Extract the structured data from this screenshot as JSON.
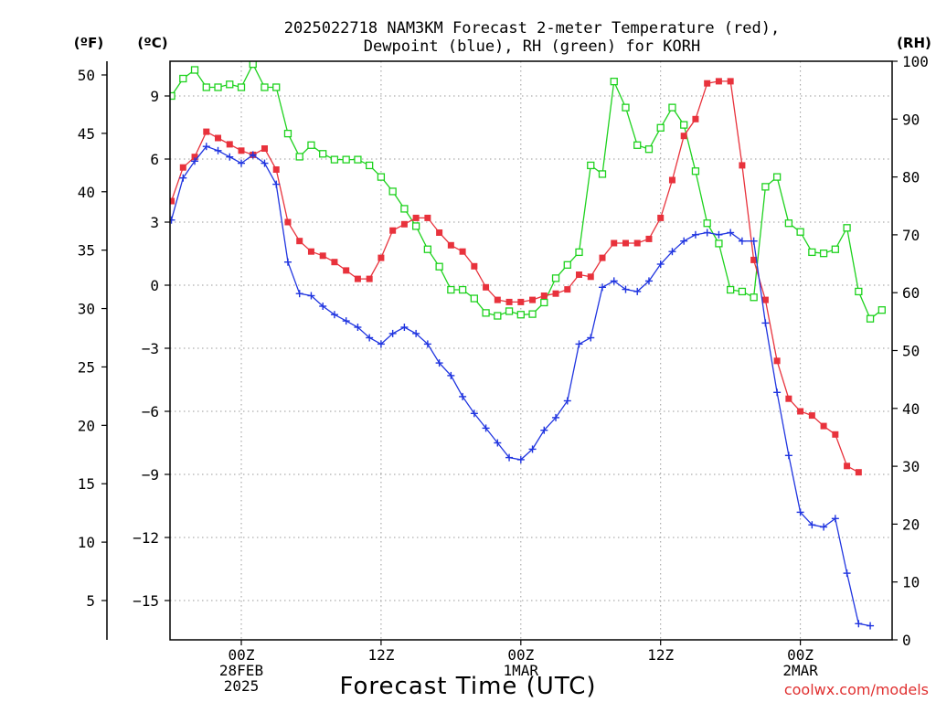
{
  "chart_data": {
    "type": "line",
    "title_line1": "2025022718 NAM3KM Forecast 2-meter Temperature (red),",
    "title_line2": "Dewpoint (blue), RH (green) for KORH",
    "xlabel": "Forecast Time (UTC)",
    "watermark": "coolwx.com/models",
    "left_axis_f_label": "(ºF)",
    "left_axis_c_label": "(ºC)",
    "right_axis_label": "(RH)",
    "x_ticks": [
      {
        "hour": 6,
        "lines": [
          "00Z",
          "28FEB",
          "2025"
        ]
      },
      {
        "hour": 18,
        "lines": [
          "12Z"
        ]
      },
      {
        "hour": 30,
        "lines": [
          "00Z",
          "1MAR"
        ]
      },
      {
        "hour": 42,
        "lines": [
          "12Z"
        ]
      },
      {
        "hour": 54,
        "lines": [
          "00Z",
          "2MAR"
        ]
      }
    ],
    "xlim_hours": [
      0,
      60
    ],
    "c_ticks": [
      9,
      6,
      3,
      0,
      -3,
      -6,
      -9,
      -12,
      -15
    ],
    "c_tick_labels": [
      "9",
      "6",
      "3",
      "0",
      "−3",
      "−6",
      "−9",
      "−12",
      "−15"
    ],
    "ylim_c": [
      -16.8,
      10.8
    ],
    "f_ticks": [
      50,
      45,
      40,
      35,
      30,
      25,
      20,
      15,
      10,
      5
    ],
    "rh_ticks": [
      100,
      90,
      80,
      70,
      60,
      50,
      40,
      30,
      20,
      10,
      0
    ],
    "ylim_rh": [
      0,
      100
    ],
    "grid": true,
    "series": [
      {
        "name": "Temperature",
        "axis": "C",
        "color": "#e8323c",
        "marker": "filled-square",
        "values": [
          [
            0,
            4.0
          ],
          [
            1,
            5.6
          ],
          [
            2,
            6.1
          ],
          [
            3,
            7.3
          ],
          [
            4,
            7.0
          ],
          [
            5,
            6.7
          ],
          [
            6,
            6.4
          ],
          [
            7,
            6.2
          ],
          [
            8,
            6.5
          ],
          [
            9,
            5.5
          ],
          [
            10,
            3.0
          ],
          [
            11,
            2.1
          ],
          [
            12,
            1.6
          ],
          [
            13,
            1.4
          ],
          [
            14,
            1.1
          ],
          [
            15,
            0.7
          ],
          [
            16,
            0.3
          ],
          [
            17,
            0.3
          ],
          [
            18,
            1.3
          ],
          [
            19,
            2.6
          ],
          [
            20,
            2.9
          ],
          [
            21,
            3.2
          ],
          [
            22,
            3.2
          ],
          [
            23,
            2.5
          ],
          [
            24,
            1.9
          ],
          [
            25,
            1.6
          ],
          [
            26,
            0.9
          ],
          [
            27,
            -0.1
          ],
          [
            28,
            -0.7
          ],
          [
            29,
            -0.8
          ],
          [
            30,
            -0.8
          ],
          [
            31,
            -0.7
          ],
          [
            32,
            -0.5
          ],
          [
            33,
            -0.4
          ],
          [
            34,
            -0.2
          ],
          [
            35,
            0.5
          ],
          [
            36,
            0.4
          ],
          [
            37,
            1.3
          ],
          [
            38,
            2.0
          ],
          [
            39,
            2.0
          ],
          [
            40,
            2.0
          ],
          [
            41,
            2.2
          ],
          [
            42,
            3.2
          ],
          [
            43,
            5.0
          ],
          [
            44,
            7.1
          ],
          [
            45,
            7.9
          ],
          [
            46,
            9.6
          ],
          [
            47,
            9.7
          ],
          [
            48,
            9.7
          ],
          [
            49,
            5.7
          ],
          [
            50,
            1.2
          ],
          [
            51,
            -0.7
          ],
          [
            52,
            -3.6
          ],
          [
            53,
            -5.4
          ],
          [
            54,
            -6.0
          ],
          [
            55,
            -6.2
          ],
          [
            56,
            -6.7
          ],
          [
            57,
            -7.1
          ],
          [
            58,
            -8.6
          ],
          [
            59,
            -8.9
          ]
        ]
      },
      {
        "name": "Dewpoint",
        "axis": "C",
        "color": "#2035e0",
        "marker": "plus",
        "values": [
          [
            0,
            3.1
          ],
          [
            1,
            5.1
          ],
          [
            2,
            5.9
          ],
          [
            3,
            6.6
          ],
          [
            4,
            6.4
          ],
          [
            5,
            6.1
          ],
          [
            6,
            5.8
          ],
          [
            7,
            6.2
          ],
          [
            8,
            5.8
          ],
          [
            9,
            4.8
          ],
          [
            10,
            1.1
          ],
          [
            11,
            -0.4
          ],
          [
            12,
            -0.5
          ],
          [
            13,
            -1.0
          ],
          [
            14,
            -1.4
          ],
          [
            15,
            -1.7
          ],
          [
            16,
            -2.0
          ],
          [
            17,
            -2.5
          ],
          [
            18,
            -2.8
          ],
          [
            19,
            -2.3
          ],
          [
            20,
            -2.0
          ],
          [
            21,
            -2.3
          ],
          [
            22,
            -2.8
          ],
          [
            23,
            -3.7
          ],
          [
            24,
            -4.3
          ],
          [
            25,
            -5.3
          ],
          [
            26,
            -6.1
          ],
          [
            27,
            -6.8
          ],
          [
            28,
            -7.5
          ],
          [
            29,
            -8.2
          ],
          [
            30,
            -8.3
          ],
          [
            31,
            -7.8
          ],
          [
            32,
            -6.9
          ],
          [
            33,
            -6.3
          ],
          [
            34,
            -5.5
          ],
          [
            35,
            -2.8
          ],
          [
            36,
            -2.5
          ],
          [
            37,
            -0.1
          ],
          [
            38,
            0.2
          ],
          [
            39,
            -0.2
          ],
          [
            40,
            -0.3
          ],
          [
            41,
            0.2
          ],
          [
            42,
            1.0
          ],
          [
            43,
            1.6
          ],
          [
            44,
            2.1
          ],
          [
            45,
            2.4
          ],
          [
            46,
            2.5
          ],
          [
            47,
            2.4
          ],
          [
            48,
            2.5
          ],
          [
            49,
            2.1
          ],
          [
            50,
            2.1
          ],
          [
            51,
            -1.8
          ],
          [
            52,
            -5.1
          ],
          [
            53,
            -8.1
          ],
          [
            54,
            -10.8
          ],
          [
            55,
            -11.4
          ],
          [
            56,
            -11.5
          ],
          [
            57,
            -11.1
          ],
          [
            58,
            -13.7
          ],
          [
            59,
            -16.1
          ],
          [
            60,
            -16.2
          ]
        ]
      },
      {
        "name": "RH",
        "axis": "RH",
        "color": "#1ed21e",
        "marker": "open-square",
        "values": [
          [
            0,
            94
          ],
          [
            1,
            97
          ],
          [
            2,
            98.5
          ],
          [
            3,
            95.5
          ],
          [
            4,
            95.5
          ],
          [
            5,
            96
          ],
          [
            6,
            95.5
          ],
          [
            7,
            99.5
          ],
          [
            8,
            95.5
          ],
          [
            9,
            95.5
          ],
          [
            10,
            87.5
          ],
          [
            11,
            83.5
          ],
          [
            12,
            85.5
          ],
          [
            13,
            84
          ],
          [
            14,
            83
          ],
          [
            15,
            83
          ],
          [
            16,
            83
          ],
          [
            17,
            82
          ],
          [
            18,
            80
          ],
          [
            19,
            77.5
          ],
          [
            20,
            74.5
          ],
          [
            21,
            71.5
          ],
          [
            22,
            67.5
          ],
          [
            23,
            64.5
          ],
          [
            24,
            60.5
          ],
          [
            25,
            60.5
          ],
          [
            26,
            59
          ],
          [
            27,
            56.5
          ],
          [
            28,
            56
          ],
          [
            29,
            56.8
          ],
          [
            30,
            56.2
          ],
          [
            31,
            56.3
          ],
          [
            32,
            58.3
          ],
          [
            33,
            62.5
          ],
          [
            34,
            64.8
          ],
          [
            35,
            67
          ],
          [
            36,
            82
          ],
          [
            37,
            80.5
          ],
          [
            38,
            96.5
          ],
          [
            39,
            92
          ],
          [
            40,
            85.5
          ],
          [
            41,
            84.8
          ],
          [
            42,
            88.5
          ],
          [
            43,
            92
          ],
          [
            44,
            89
          ],
          [
            45,
            81
          ],
          [
            46,
            72
          ],
          [
            47,
            68.5
          ],
          [
            48,
            60.5
          ],
          [
            49,
            60.2
          ],
          [
            50,
            59.2
          ],
          [
            51,
            78.3
          ],
          [
            52,
            80
          ],
          [
            53,
            72
          ],
          [
            54,
            70.5
          ],
          [
            55,
            67
          ],
          [
            56,
            66.8
          ],
          [
            57,
            67.5
          ],
          [
            58,
            71.2
          ],
          [
            59,
            60.2
          ],
          [
            60,
            55.5
          ],
          [
            61,
            57
          ]
        ]
      }
    ]
  }
}
